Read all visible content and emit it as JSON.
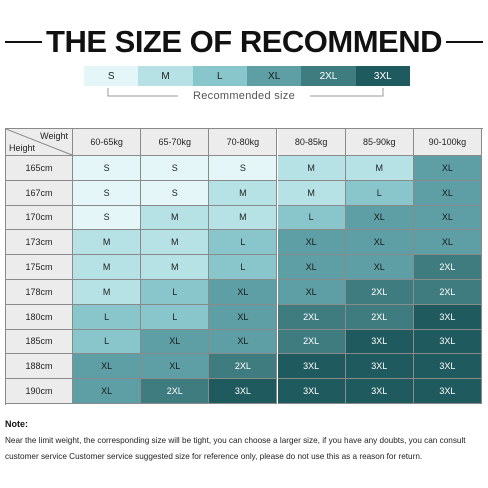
{
  "header": {
    "title": "THE SIZE OF RECOMMEND"
  },
  "legend": {
    "items": [
      {
        "label": "S",
        "color": "#e4f6f7",
        "text_color": "#222"
      },
      {
        "label": "M",
        "color": "#b6e2e5",
        "text_color": "#222"
      },
      {
        "label": "L",
        "color": "#88c6cb",
        "text_color": "#222"
      },
      {
        "label": "XL",
        "color": "#5d9fa4",
        "text_color": "#1a1a1a"
      },
      {
        "label": "2XL",
        "color": "#3f7c80",
        "text_color": "#ffffff"
      },
      {
        "label": "3XL",
        "color": "#1f5b5e",
        "text_color": "#ffffff"
      }
    ],
    "caption": "Recommended size"
  },
  "table": {
    "corner": {
      "column": "Weight",
      "row": "Height"
    },
    "columns": [
      "60-65kg",
      "65-70kg",
      "70-80kg",
      "80-85kg",
      "85-90kg",
      "90-100kg"
    ],
    "rows": [
      {
        "height": "165cm",
        "sizes": [
          "S",
          "S",
          "S",
          "M",
          "M",
          "XL"
        ]
      },
      {
        "height": "167cm",
        "sizes": [
          "S",
          "S",
          "M",
          "M",
          "L",
          "XL"
        ]
      },
      {
        "height": "170cm",
        "sizes": [
          "S",
          "M",
          "M",
          "L",
          "XL",
          "XL"
        ]
      },
      {
        "height": "173cm",
        "sizes": [
          "M",
          "M",
          "L",
          "XL",
          "XL",
          "XL"
        ]
      },
      {
        "height": "175cm",
        "sizes": [
          "M",
          "M",
          "L",
          "XL",
          "XL",
          "2XL"
        ]
      },
      {
        "height": "178cm",
        "sizes": [
          "M",
          "L",
          "XL",
          "XL",
          "2XL",
          "2XL"
        ]
      },
      {
        "height": "180cm",
        "sizes": [
          "L",
          "L",
          "XL",
          "2XL",
          "2XL",
          "3XL"
        ]
      },
      {
        "height": "185cm",
        "sizes": [
          "L",
          "XL",
          "XL",
          "2XL",
          "3XL",
          "3XL"
        ]
      },
      {
        "height": "188cm",
        "sizes": [
          "XL",
          "XL",
          "2XL",
          "3XL",
          "3XL",
          "3XL"
        ]
      },
      {
        "height": "190cm",
        "sizes": [
          "XL",
          "2XL",
          "3XL",
          "3XL",
          "3XL",
          "3XL"
        ]
      }
    ]
  },
  "note": {
    "title": "Note:",
    "lines": [
      "Near the limit weight, the corresponding size will be tight, you can choose a larger size, if you have any doubts, you can consult",
      "customer service Customer service suggested size for reference only, please do not use this as a reason for return."
    ]
  }
}
